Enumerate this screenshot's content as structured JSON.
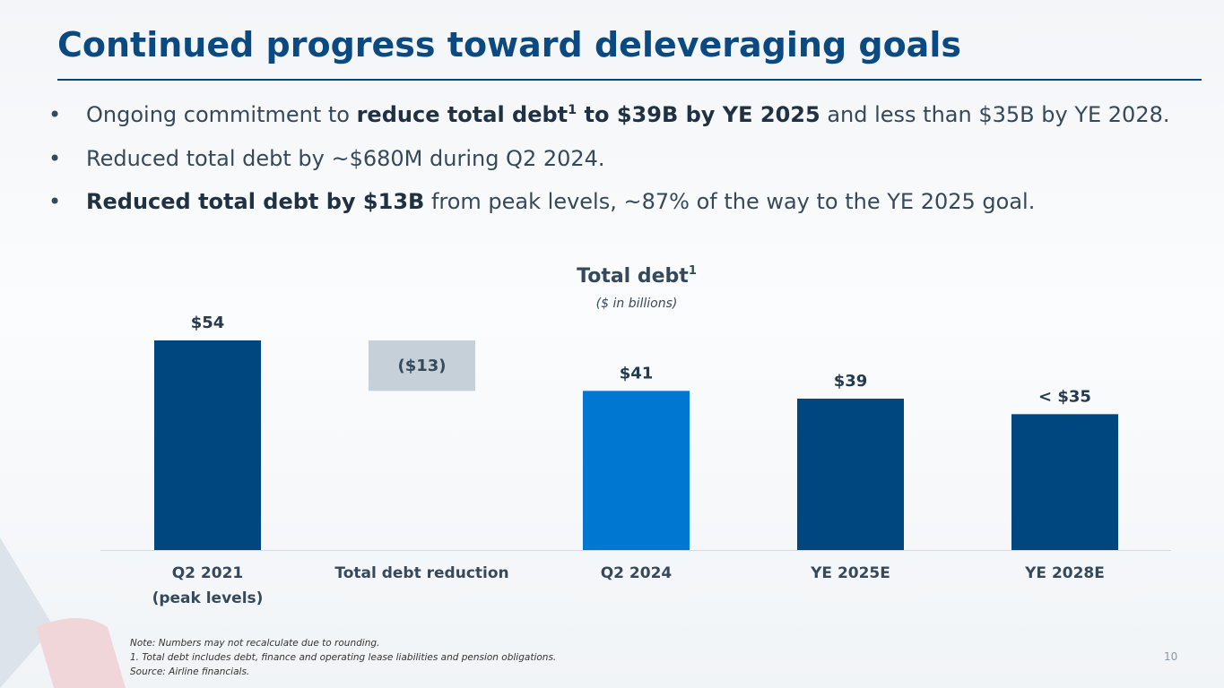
{
  "title": "Continued progress toward deleveraging goals",
  "bullets": [
    [
      "Ongoing commitment to ",
      "reduce total debt",
      "1",
      " to $39B by YE 2025",
      " and less than $35B by YE 2028."
    ],
    [
      "Reduced total debt by ~$680M during Q2 2024."
    ],
    [
      "Reduced total debt by $13B",
      " from peak levels, ~87% of the way to the YE 2025 goal."
    ]
  ],
  "chart_data": {
    "type": "waterfall",
    "title": "Total debt",
    "title_note": "1",
    "subtitle": "($ in billions)",
    "categories": [
      "Q2 2021\n(peak levels)",
      "Total debt reduction",
      "Q2 2024",
      "YE 2025E",
      "YE 2028E"
    ],
    "values": [
      54,
      -13,
      41,
      39,
      35
    ],
    "value_labels": [
      "$54",
      "($13)",
      "$41",
      "$39",
      "< $35"
    ],
    "colors": [
      "#00467f",
      "#c5d0d8",
      "#0078d2",
      "#00467f",
      "#00467f"
    ]
  },
  "notes": [
    "Note: Numbers may not recalculate due to rounding.",
    "1. Total debt includes debt, finance and operating lease liabilities and pension obligations.",
    "Source: Airline financials."
  ],
  "page_number": 10
}
